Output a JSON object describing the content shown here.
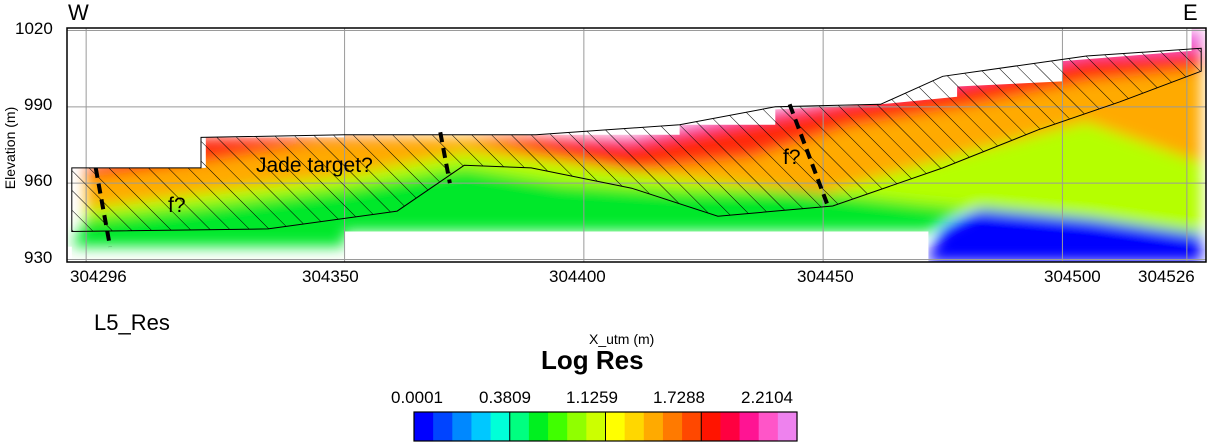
{
  "chart_data": {
    "type": "heatmap",
    "title": "L5_Res",
    "xlabel": "X_utm (m)",
    "ylabel": "Elevation (m)",
    "xlim": [
      304292,
      304530
    ],
    "ylim": [
      929,
      1021
    ],
    "x_ticks": [
      {
        "value": 304296,
        "label": "304296"
      },
      {
        "value": 304350,
        "label": "304350"
      },
      {
        "value": 304400,
        "label": "304400"
      },
      {
        "value": 304450,
        "label": "304450"
      },
      {
        "value": 304500,
        "label": "304500"
      },
      {
        "value": 304526,
        "label": "304526"
      }
    ],
    "y_ticks": [
      {
        "value": 930,
        "label": "930"
      },
      {
        "value": 960,
        "label": "960"
      },
      {
        "value": 990,
        "label": "990"
      },
      {
        "value": 1020,
        "label": "1020"
      }
    ],
    "grid": true,
    "direction_labels": {
      "west": "W",
      "east": "E"
    },
    "colorbar": {
      "title": "Log Res",
      "ticks": [
        "0.0001",
        "0.3809",
        "1.1259",
        "1.7288",
        "2.2104"
      ],
      "colors": [
        "#0000ff",
        "#0044ff",
        "#0088ff",
        "#00c8ff",
        "#00ffd8",
        "#00ff80",
        "#00f020",
        "#40ff00",
        "#90ff00",
        "#ccff00",
        "#ffff00",
        "#ffd700",
        "#ffaa00",
        "#ff7a00",
        "#ff4800",
        "#ff1400",
        "#ff0040",
        "#ff1493",
        "#ff55c8",
        "#ee82ee"
      ]
    },
    "annotations": [
      {
        "text": "Jade target?",
        "x": 304363,
        "y": 964
      },
      {
        "text": "f?",
        "x": 304300,
        "y": 950
      },
      {
        "text": "f?",
        "x": 304437,
        "y": 962
      }
    ],
    "layers": [
      {
        "name": "conductive",
        "color": "#0000ff",
        "polygon": [
          [
            304472,
            929
          ],
          [
            304472,
            931
          ],
          [
            304475,
            942
          ],
          [
            304482,
            949
          ],
          [
            304488,
            956
          ],
          [
            304495,
            961
          ],
          [
            304529,
            962
          ],
          [
            304529,
            929
          ]
        ]
      },
      {
        "name": "lower",
        "color": "#00e82a",
        "polygon": [
          [
            304293,
            935
          ],
          [
            304350,
            935
          ],
          [
            304350,
            941
          ],
          [
            304472,
            941
          ],
          [
            304477,
            947
          ],
          [
            304490,
            955
          ],
          [
            304503,
            964
          ],
          [
            304529,
            976
          ],
          [
            304529,
            940
          ],
          [
            304506,
            946
          ],
          [
            304470,
            952
          ],
          [
            304445,
            957
          ],
          [
            304420,
            957
          ],
          [
            304395,
            960
          ],
          [
            304375,
            966
          ],
          [
            304350,
            958
          ],
          [
            304320,
            951
          ],
          [
            304296,
            946
          ]
        ]
      },
      {
        "name": "transition",
        "color": "#b5ff00",
        "polygon": [
          [
            304296,
            946
          ],
          [
            304320,
            951
          ],
          [
            304350,
            958
          ],
          [
            304375,
            966
          ],
          [
            304395,
            960
          ],
          [
            304420,
            957
          ],
          [
            304445,
            957
          ],
          [
            304470,
            952
          ],
          [
            304506,
            946
          ],
          [
            304529,
            940
          ],
          [
            304529,
            968
          ],
          [
            304505,
            984
          ],
          [
            304480,
            972
          ],
          [
            304450,
            956
          ],
          [
            304420,
            962
          ],
          [
            304395,
            968
          ],
          [
            304375,
            972
          ],
          [
            304350,
            963
          ],
          [
            304320,
            956
          ],
          [
            304296,
            950
          ]
        ]
      },
      {
        "name": "intermediate",
        "color": "#ffaa00",
        "polygon": [
          [
            304296,
            950
          ],
          [
            304320,
            956
          ],
          [
            304350,
            963
          ],
          [
            304375,
            972
          ],
          [
            304395,
            968
          ],
          [
            304420,
            962
          ],
          [
            304450,
            956
          ],
          [
            304480,
            972
          ],
          [
            304505,
            984
          ],
          [
            304529,
            968
          ],
          [
            304529,
            1005
          ],
          [
            304505,
            1000
          ],
          [
            304480,
            990
          ],
          [
            304455,
            982
          ],
          [
            304435,
            970
          ],
          [
            304410,
            965
          ],
          [
            304390,
            972
          ],
          [
            304375,
            978
          ],
          [
            304345,
            976
          ],
          [
            304320,
            968
          ],
          [
            304296,
            962
          ]
        ]
      },
      {
        "name": "resistive",
        "color": "#ff2a10",
        "polygon": [
          [
            304296,
            962
          ],
          [
            304320,
            968
          ],
          [
            304345,
            976
          ],
          [
            304375,
            978
          ],
          [
            304390,
            972
          ],
          [
            304410,
            965
          ],
          [
            304435,
            970
          ],
          [
            304455,
            982
          ],
          [
            304480,
            990
          ],
          [
            304505,
            1000
          ],
          [
            304529,
            1005
          ],
          [
            304529,
            1020
          ],
          [
            304505,
            1015
          ],
          [
            304480,
            1005
          ],
          [
            304455,
            993
          ],
          [
            304430,
            986
          ],
          [
            304410,
            978
          ],
          [
            304390,
            978
          ],
          [
            304320,
            978
          ],
          [
            304296,
            966
          ]
        ]
      },
      {
        "name": "very resistive",
        "color": "#ee60d8",
        "polygon": [
          [
            304390,
            978
          ],
          [
            304410,
            978
          ],
          [
            304430,
            986
          ],
          [
            304455,
            993
          ],
          [
            304480,
            1005
          ],
          [
            304505,
            1015
          ],
          [
            304529,
            1020
          ],
          [
            304529,
            1012
          ],
          [
            304505,
            1010
          ],
          [
            304480,
            1000
          ],
          [
            304455,
            992
          ],
          [
            304430,
            983
          ],
          [
            304410,
            976
          ]
        ]
      }
    ],
    "masks": [
      {
        "polygon": [
          [
            304292,
            1021
          ],
          [
            304293,
            1021
          ],
          [
            304293,
            966
          ],
          [
            304320,
            966
          ],
          [
            304320,
            978
          ],
          [
            304350,
            978
          ],
          [
            304350,
            979
          ],
          [
            304420,
            979
          ],
          [
            304420,
            983
          ],
          [
            304440,
            983
          ],
          [
            304440,
            989
          ],
          [
            304462,
            991
          ],
          [
            304478,
            994
          ],
          [
            304478,
            998
          ],
          [
            304500,
            1000
          ],
          [
            304500,
            1008
          ],
          [
            304527,
            1012
          ],
          [
            304527,
            1021
          ]
        ]
      },
      {
        "polygon": [
          [
            304320,
            966
          ],
          [
            304320,
            978
          ],
          [
            304328,
            978
          ],
          [
            304328,
            997
          ],
          [
            304321,
            997
          ],
          [
            304321,
            966
          ]
        ]
      },
      {
        "polygon": [
          [
            304350,
            935
          ],
          [
            304350,
            929
          ],
          [
            304472,
            929
          ],
          [
            304472,
            941
          ],
          [
            304350,
            941
          ]
        ]
      },
      {
        "polygon": [
          [
            304292,
            929
          ],
          [
            304292,
            935
          ],
          [
            304293,
            935
          ],
          [
            304293,
            929
          ]
        ]
      }
    ],
    "hatched_zone": [
      [
        304293,
        941
      ],
      [
        304334,
        942
      ],
      [
        304361,
        949
      ],
      [
        304375,
        967
      ],
      [
        304389,
        966
      ],
      [
        304410,
        958
      ],
      [
        304428,
        947
      ],
      [
        304452,
        951
      ],
      [
        304475,
        966
      ],
      [
        304495,
        981
      ],
      [
        304512,
        992
      ],
      [
        304529,
        1004
      ],
      [
        304529,
        1013
      ],
      [
        304505,
        1010
      ],
      [
        304475,
        1002
      ],
      [
        304462,
        991
      ],
      [
        304440,
        990
      ],
      [
        304420,
        983
      ],
      [
        304390,
        979
      ],
      [
        304350,
        979
      ],
      [
        304320,
        978
      ],
      [
        304320,
        966
      ],
      [
        304293,
        966
      ]
    ],
    "faults": [
      [
        [
          304298,
          966
        ],
        [
          304301,
          935
        ]
      ],
      [
        [
          304370,
          980
        ],
        [
          304372,
          960
        ]
      ],
      [
        [
          304443,
          991
        ],
        [
          304451,
          951
        ]
      ]
    ]
  }
}
